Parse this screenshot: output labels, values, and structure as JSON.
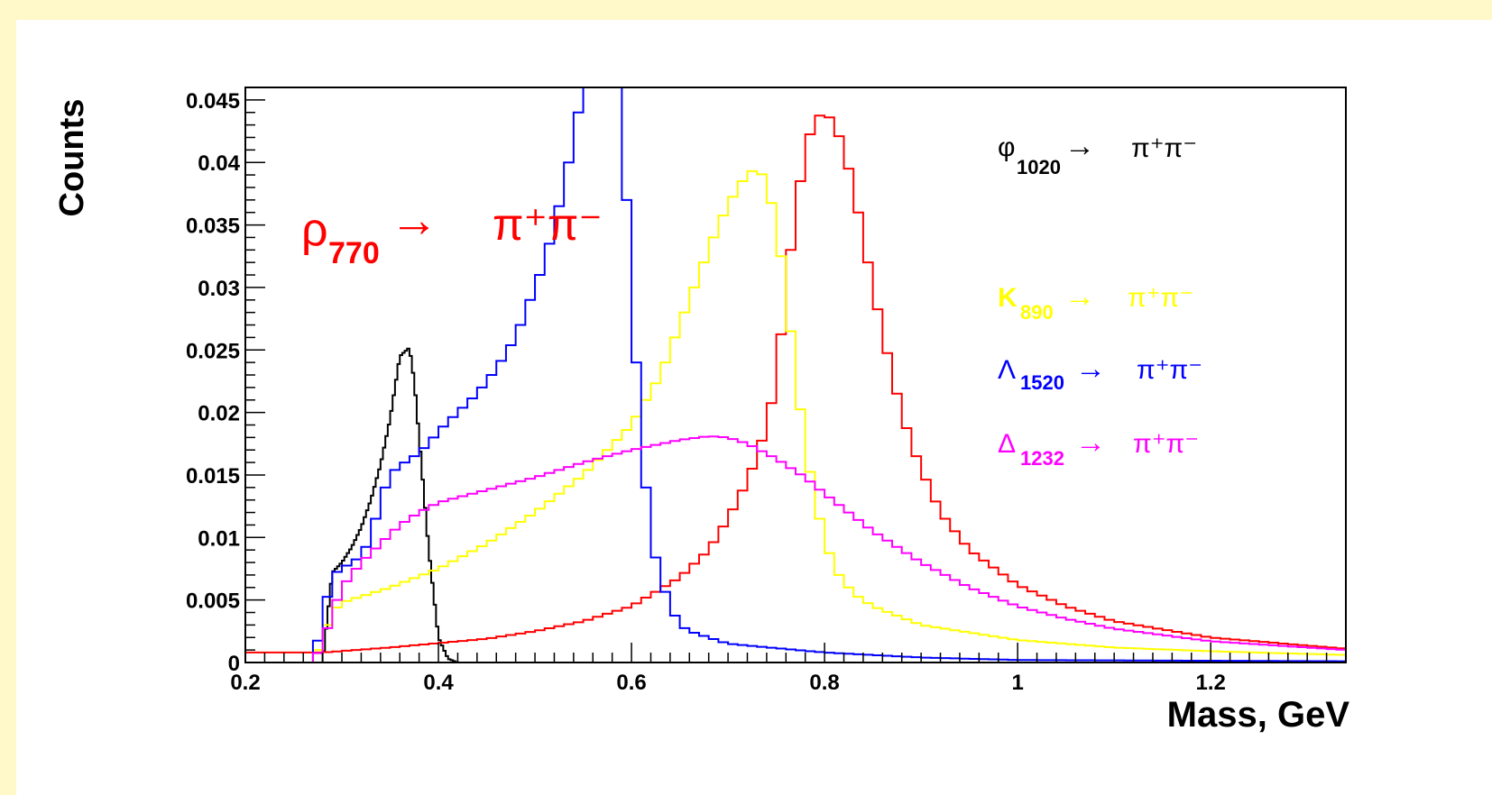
{
  "colors": {
    "frame": "#fff8c8",
    "background": "#ffffff",
    "axis": "#000000"
  },
  "chart_data": {
    "type": "line",
    "histogram": true,
    "title": "",
    "xlabel": "Mass, GeV",
    "ylabel": "Counts",
    "xlim": [
      0.2,
      1.34
    ],
    "ylim": [
      0,
      0.046
    ],
    "x_ticks": [
      "0.2",
      "0.4",
      "0.6",
      "0.8",
      "1",
      "1.2"
    ],
    "y_ticks": [
      "0",
      "0.005",
      "0.01",
      "0.015",
      "0.02",
      "0.025",
      "0.03",
      "0.035",
      "0.04",
      "0.045"
    ],
    "grid": false,
    "bin_width": 0.01,
    "series": [
      {
        "key": "phi",
        "color": "#000000",
        "label_symbol": "φ",
        "label_sub": "1020",
        "label_text": "π⁺π⁻",
        "points": [
          [
            0.28,
            0
          ],
          [
            0.29,
            0.0072
          ],
          [
            0.3,
            0.008
          ],
          [
            0.31,
            0.0092
          ],
          [
            0.32,
            0.0108
          ],
          [
            0.33,
            0.013
          ],
          [
            0.34,
            0.0158
          ],
          [
            0.35,
            0.0195
          ],
          [
            0.36,
            0.0245
          ],
          [
            0.37,
            0.0252
          ],
          [
            0.375,
            0.0225
          ],
          [
            0.38,
            0.018
          ],
          [
            0.39,
            0.009
          ],
          [
            0.4,
            0.002
          ],
          [
            0.41,
            0.0003
          ],
          [
            0.42,
            0
          ]
        ]
      },
      {
        "key": "rho",
        "color": "#ff0000",
        "label_symbol": "ρ",
        "label_sub": "770",
        "label_text": "π⁺π⁻",
        "points": [
          [
            0.28,
            0.0008
          ],
          [
            0.35,
            0.0012
          ],
          [
            0.45,
            0.0019
          ],
          [
            0.5,
            0.0025
          ],
          [
            0.55,
            0.0033
          ],
          [
            0.6,
            0.0045
          ],
          [
            0.65,
            0.0068
          ],
          [
            0.68,
            0.009
          ],
          [
            0.7,
            0.0115
          ],
          [
            0.72,
            0.0145
          ],
          [
            0.73,
            0.0165
          ],
          [
            0.74,
            0.019
          ],
          [
            0.75,
            0.0225
          ],
          [
            0.76,
            0.03
          ],
          [
            0.77,
            0.036
          ],
          [
            0.78,
            0.041
          ],
          [
            0.79,
            0.0435
          ],
          [
            0.8,
            0.044
          ],
          [
            0.81,
            0.0432
          ],
          [
            0.82,
            0.041
          ],
          [
            0.83,
            0.038
          ],
          [
            0.84,
            0.034
          ],
          [
            0.85,
            0.03
          ],
          [
            0.86,
            0.0265
          ],
          [
            0.87,
            0.023
          ],
          [
            0.88,
            0.02
          ],
          [
            0.89,
            0.0175
          ],
          [
            0.9,
            0.0155
          ],
          [
            0.92,
            0.012
          ],
          [
            0.95,
            0.009
          ],
          [
            1.0,
            0.0062
          ],
          [
            1.05,
            0.0045
          ],
          [
            1.1,
            0.0033
          ],
          [
            1.2,
            0.002
          ],
          [
            1.34,
            0.0011
          ]
        ]
      },
      {
        "key": "k890",
        "color": "#ffff00",
        "label_symbol": "K",
        "label_sub": "890",
        "label_text": "π⁺π⁻",
        "points": [
          [
            0.27,
            0
          ],
          [
            0.29,
            0.004
          ],
          [
            0.3,
            0.0048
          ],
          [
            0.35,
            0.006
          ],
          [
            0.4,
            0.0075
          ],
          [
            0.45,
            0.0095
          ],
          [
            0.5,
            0.012
          ],
          [
            0.55,
            0.015
          ],
          [
            0.6,
            0.019
          ],
          [
            0.63,
            0.023
          ],
          [
            0.65,
            0.027
          ],
          [
            0.67,
            0.031
          ],
          [
            0.69,
            0.035
          ],
          [
            0.71,
            0.038
          ],
          [
            0.72,
            0.039
          ],
          [
            0.73,
            0.0396
          ],
          [
            0.74,
            0.0385
          ],
          [
            0.75,
            0.035
          ],
          [
            0.76,
            0.03
          ],
          [
            0.77,
            0.023
          ],
          [
            0.78,
            0.0175
          ],
          [
            0.79,
            0.013
          ],
          [
            0.8,
            0.01
          ],
          [
            0.81,
            0.0075
          ],
          [
            0.83,
            0.0055
          ],
          [
            0.85,
            0.0045
          ],
          [
            0.9,
            0.003
          ],
          [
            1.0,
            0.0018
          ],
          [
            1.1,
            0.0012
          ],
          [
            1.2,
            0.0009
          ],
          [
            1.34,
            0.0006
          ]
        ]
      },
      {
        "key": "lambda",
        "color": "#0000ff",
        "label_symbol": "Λ",
        "label_sub": "1520",
        "label_text": "π⁺π⁻",
        "points": [
          [
            0.27,
            0
          ],
          [
            0.28,
            0.0035
          ],
          [
            0.29,
            0.007
          ],
          [
            0.3,
            0.0075
          ],
          [
            0.32,
            0.0085
          ],
          [
            0.33,
            0.01
          ],
          [
            0.34,
            0.013
          ],
          [
            0.35,
            0.015
          ],
          [
            0.36,
            0.0158
          ],
          [
            0.37,
            0.0162
          ],
          [
            0.38,
            0.0168
          ],
          [
            0.39,
            0.0175
          ],
          [
            0.4,
            0.0185
          ],
          [
            0.42,
            0.02
          ],
          [
            0.44,
            0.0215
          ],
          [
            0.46,
            0.0235
          ],
          [
            0.48,
            0.026
          ],
          [
            0.49,
            0.028
          ],
          [
            0.5,
            0.03
          ],
          [
            0.51,
            0.032
          ],
          [
            0.52,
            0.035
          ],
          [
            0.53,
            0.038
          ],
          [
            0.54,
            0.042
          ],
          [
            0.55,
            0.046
          ],
          [
            0.56,
            0.06
          ],
          [
            0.58,
            0.06
          ],
          [
            0.59,
            0.044
          ],
          [
            0.6,
            0.03
          ],
          [
            0.61,
            0.018
          ],
          [
            0.62,
            0.01
          ],
          [
            0.63,
            0.0068
          ],
          [
            0.64,
            0.0045
          ],
          [
            0.65,
            0.003
          ],
          [
            0.66,
            0.0025
          ],
          [
            0.7,
            0.0015
          ],
          [
            0.8,
            0.0008
          ],
          [
            0.9,
            0.0004
          ],
          [
            1.0,
            0.0002
          ],
          [
            1.34,
            0.0001
          ]
        ]
      },
      {
        "key": "delta",
        "color": "#ff00ff",
        "label_symbol": "Δ",
        "label_sub": "1232",
        "label_text": "π⁺π⁻",
        "points": [
          [
            0.27,
            0
          ],
          [
            0.28,
            0.0015
          ],
          [
            0.29,
            0.004
          ],
          [
            0.3,
            0.006
          ],
          [
            0.32,
            0.008
          ],
          [
            0.34,
            0.0095
          ],
          [
            0.36,
            0.011
          ],
          [
            0.38,
            0.012
          ],
          [
            0.4,
            0.0128
          ],
          [
            0.45,
            0.0138
          ],
          [
            0.5,
            0.0148
          ],
          [
            0.55,
            0.016
          ],
          [
            0.6,
            0.017
          ],
          [
            0.65,
            0.0178
          ],
          [
            0.68,
            0.0181
          ],
          [
            0.7,
            0.018
          ],
          [
            0.72,
            0.0175
          ],
          [
            0.75,
            0.0163
          ],
          [
            0.78,
            0.0148
          ],
          [
            0.8,
            0.0135
          ],
          [
            0.85,
            0.0105
          ],
          [
            0.9,
            0.008
          ],
          [
            0.95,
            0.006
          ],
          [
            1.0,
            0.0045
          ],
          [
            1.05,
            0.0035
          ],
          [
            1.1,
            0.0027
          ],
          [
            1.2,
            0.0017
          ],
          [
            1.34,
            0.001
          ]
        ]
      }
    ]
  },
  "labels": {
    "rho_symbol": "ρ",
    "rho_sub": "770",
    "rho_arrow": "→",
    "rho_text": "π⁺π⁻",
    "phi_symbol": "φ",
    "phi_sub": "1020",
    "phi_arrow": "→",
    "phi_text": "π⁺π⁻",
    "k_symbol": "K",
    "k_sub": "890",
    "k_arrow": "→",
    "k_text": "π⁺π⁻",
    "lambda_symbol": "Λ",
    "lambda_sub": "1520",
    "lambda_arrow": "→",
    "lambda_text": "π⁺π⁻",
    "delta_symbol": "Δ",
    "delta_sub": "1232",
    "delta_arrow": "→",
    "delta_text": "π⁺π⁻"
  }
}
